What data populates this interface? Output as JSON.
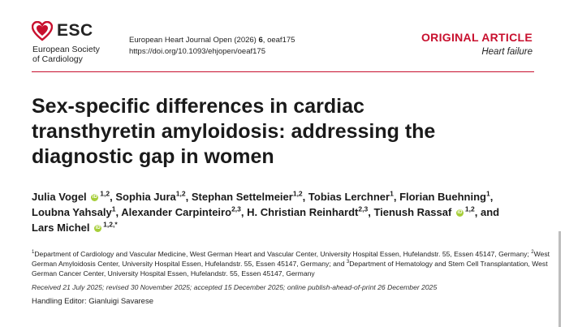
{
  "colors": {
    "accent": "#c8102e",
    "orcid": "#a6ce39"
  },
  "logo": {
    "icon": "heart-icon",
    "name": "ESC",
    "subtitle_line1": "European Society",
    "subtitle_line2": "of Cardiology"
  },
  "journal": {
    "citation_prefix": "European Heart Journal Open (2026) ",
    "volume": "6",
    "citation_suffix": ", oeaf175",
    "doi": "https://doi.org/10.1093/ehjopen/oeaf175"
  },
  "article": {
    "type": "ORIGINAL ARTICLE",
    "category": "Heart failure",
    "title": "Sex-specific differences in cardiac transthyretin amyloidosis: addressing the diagnostic gap in women"
  },
  "authors": [
    {
      "name": "Julia Vogel",
      "orcid": true,
      "sup": "1,2",
      "sep": ", "
    },
    {
      "name": "Sophia Jura",
      "orcid": false,
      "sup": "1,2",
      "sep": ", "
    },
    {
      "name": "Stephan Settelmeier",
      "orcid": false,
      "sup": "1,2",
      "sep": ", "
    },
    {
      "name": "Tobias Lerchner",
      "orcid": false,
      "sup": "1",
      "sep": ", "
    },
    {
      "name": "Florian Buehning",
      "orcid": false,
      "sup": "1",
      "sep": ", "
    },
    {
      "name": "Loubna Yahsaly",
      "orcid": false,
      "sup": "1",
      "sep": ", "
    },
    {
      "name": "Alexander Carpinteiro",
      "orcid": false,
      "sup": "2,3",
      "sep": ", "
    },
    {
      "name": "H. Christian Reinhardt",
      "orcid": false,
      "sup": "2,3",
      "sep": ", "
    },
    {
      "name": "Tienush Rassaf",
      "orcid": true,
      "sup": "1,2",
      "sep": ", and "
    },
    {
      "name": "Lars Michel",
      "orcid": true,
      "sup": "1,2,",
      "sep": ""
    }
  ],
  "orcid_label": "iD",
  "corresponding_mark": "*",
  "affiliations": [
    {
      "num": "1",
      "text": "Department of Cardiology and Vascular Medicine, West German Heart and Vascular Center, University Hospital Essen, Hufelandstr. 55, Essen 45147, Germany; "
    },
    {
      "num": "2",
      "text": "West German Amyloidosis Center, University Hospital Essen, Hufelandstr. 55, Essen 45147, Germany; and "
    },
    {
      "num": "3",
      "text": "Department of Hematology and Stem Cell Transplantation, West German Cancer Center, University Hospital Essen, Hufelandstr. 55, Essen 45147, Germany"
    }
  ],
  "dates": "Received 21 July 2025; revised 30 November 2025; accepted 15 December 2025; online publish-ahead-of-print 26 December 2025",
  "handling_editor": "Handling Editor: Gianluigi Savarese"
}
